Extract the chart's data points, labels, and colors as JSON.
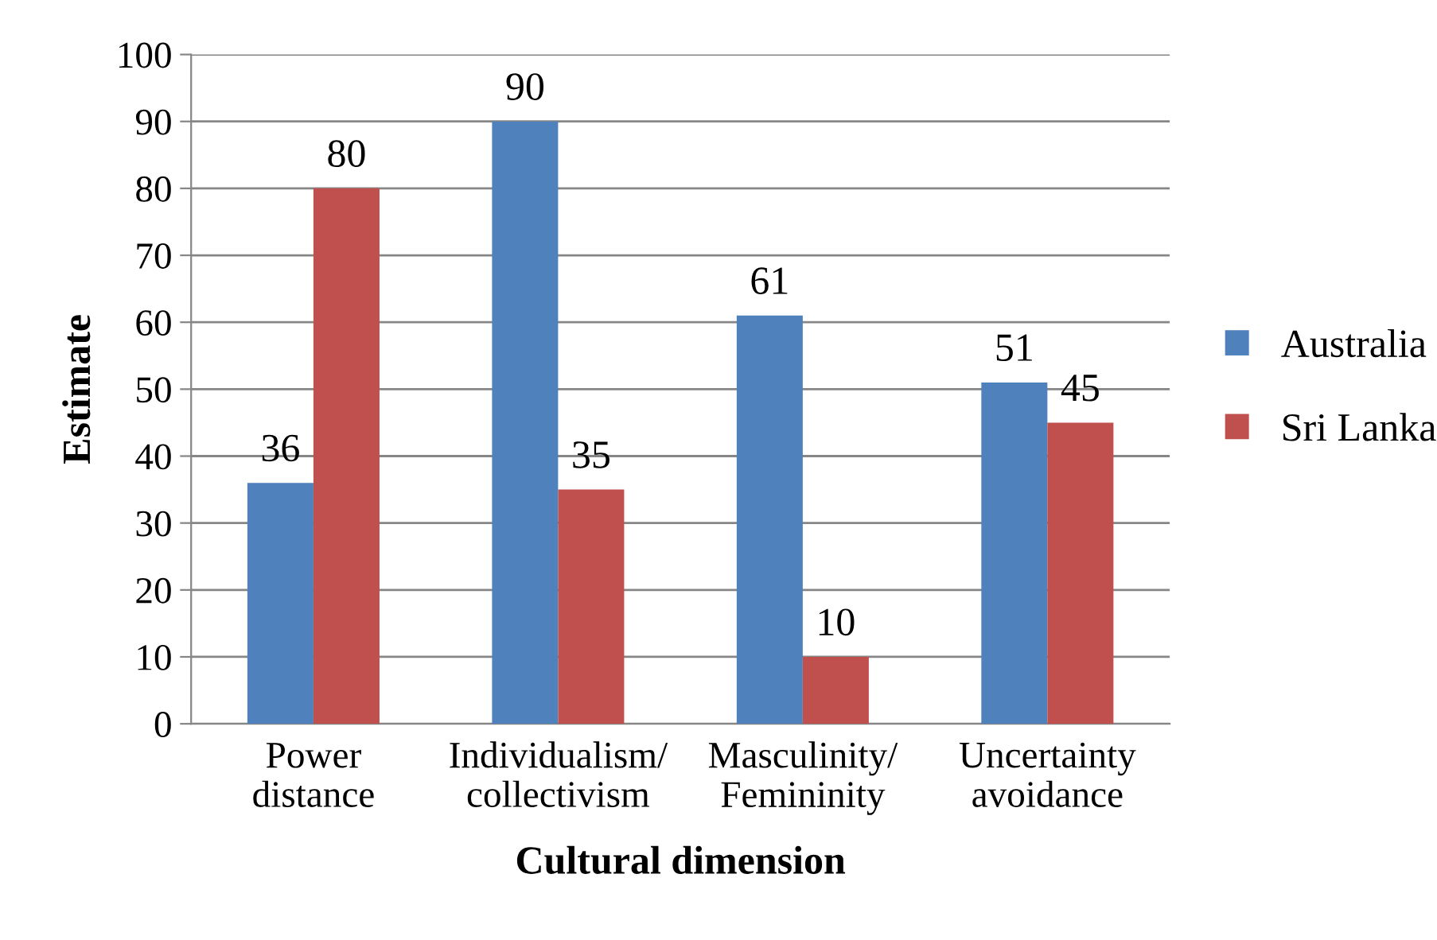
{
  "chart_data": {
    "type": "bar",
    "xlabel": "Cultural dimension",
    "ylabel": "Estimate",
    "categories": [
      "Power\ndistance",
      "Individualism/\ncollectivism",
      "Masculinity/\nFemininity",
      "Uncertainty\navoidance"
    ],
    "series": [
      {
        "name": "Australia",
        "color": "#4f81bd",
        "values": [
          36,
          90,
          61,
          51
        ]
      },
      {
        "name": "Sri Lanka",
        "color": "#c0504d",
        "values": [
          80,
          35,
          10,
          45
        ]
      }
    ],
    "ylim": [
      0,
      100
    ],
    "yticks": [
      0,
      10,
      20,
      30,
      40,
      50,
      60,
      70,
      80,
      90,
      100
    ],
    "grid": "y",
    "legend": "right",
    "data_labels": true
  }
}
